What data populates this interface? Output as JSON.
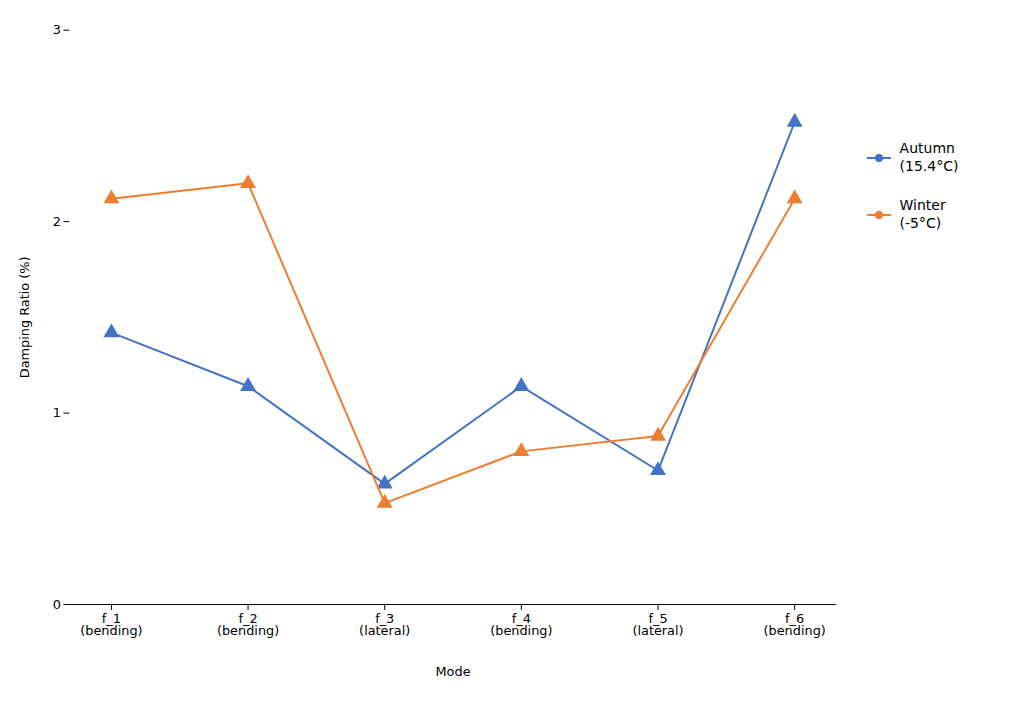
{
  "chart_data": {
    "type": "line",
    "xlabel": "Mode",
    "ylabel": "Damping Ratio (%)",
    "categories": [
      "f_1\n(bending)",
      "f_2\n(bending)",
      "f_3\n(lateral)",
      "f_4\n(bending)",
      "f_5\n(lateral)",
      "f_6\n(bending)"
    ],
    "series": [
      {
        "name": "Autumn\n(15.4°C)",
        "color": "#4472C4",
        "values": [
          1.42,
          1.14,
          0.63,
          1.14,
          0.7,
          2.52
        ],
        "marker": "triangle"
      },
      {
        "name": "Winter\n(-5°C)",
        "color": "#ED7D31",
        "values": [
          2.12,
          2.2,
          0.53,
          0.8,
          0.88,
          2.12
        ],
        "marker": "triangle"
      }
    ],
    "ylim": [
      0,
      3
    ],
    "yticks": [
      0,
      1,
      2,
      3
    ],
    "grid": false,
    "legend": "right"
  }
}
